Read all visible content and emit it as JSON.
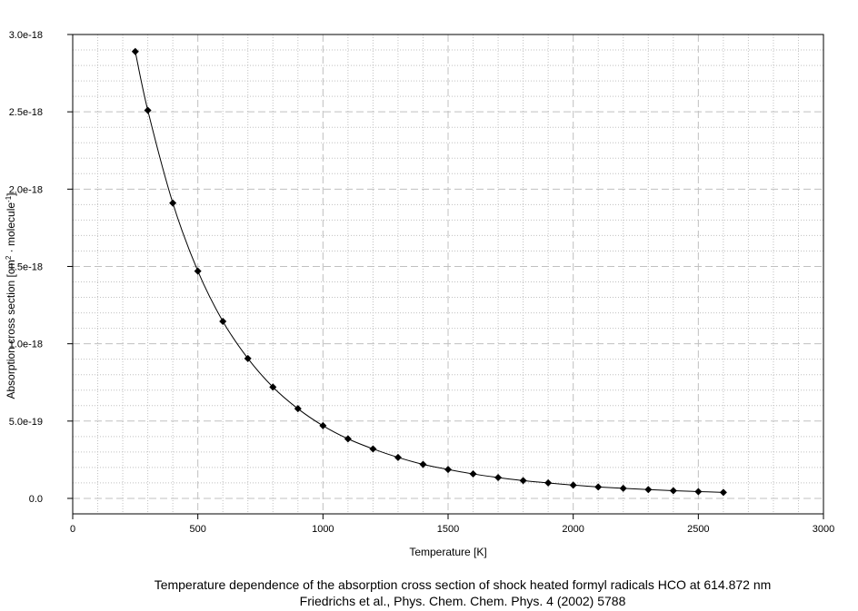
{
  "caption": {
    "line1": "Temperature  dependence of the absorption cross section of shock heated formyl radicals HCO at 614.872 nm",
    "line2": "Friedrichs et al., Phys. Chem. Chem. Phys. 4 (2002) 5788"
  },
  "chart_data": {
    "type": "line",
    "title": "",
    "xlabel": "Temperature [K]",
    "ylabel_parts": {
      "pre": "Absorption cross section [cm",
      "sup1": "2",
      "mid": " · molecule",
      "sup2": "-1",
      "post": "]"
    },
    "xlim": [
      0,
      3000
    ],
    "ylim": [
      -1e-19,
      3e-18
    ],
    "x_ticks": [
      0,
      500,
      1000,
      1500,
      2000,
      2500,
      3000
    ],
    "x_tick_labels": [
      "0",
      "500",
      "1000",
      "1500",
      "2000",
      "2500",
      "3000"
    ],
    "y_ticks": [
      0,
      5e-19,
      1e-18,
      1.5e-18,
      2e-18,
      2.5e-18,
      3e-18
    ],
    "y_tick_labels": [
      "0.0",
      "5.0e-19",
      "1.0e-18",
      "1.5e-18",
      "2.0e-18",
      "2.5e-18",
      "3.0e-18"
    ],
    "grid": true,
    "marker": "diamond",
    "line_color": "#000000",
    "grid_color": "#c0c0c0",
    "series": [
      {
        "x": [
          250,
          300,
          400,
          500,
          600,
          700,
          800,
          900,
          1000,
          1100,
          1200,
          1300,
          1400,
          1500,
          1600,
          1700,
          1800,
          1900,
          2000,
          2100,
          2200,
          2300,
          2400,
          2500,
          2600
        ],
        "y": [
          2.89e-18,
          2.51e-18,
          1.91e-18,
          1.47e-18,
          1.145e-18,
          9.05e-19,
          7.2e-19,
          5.8e-19,
          4.7e-19,
          3.85e-19,
          3.2e-19,
          2.65e-19,
          2.2e-19,
          1.87e-19,
          1.58e-19,
          1.35e-19,
          1.15e-19,
          1e-19,
          8.6e-20,
          7.4e-20,
          6.5e-20,
          5.7e-20,
          5e-20,
          4.4e-20,
          3.9e-20
        ]
      }
    ]
  }
}
